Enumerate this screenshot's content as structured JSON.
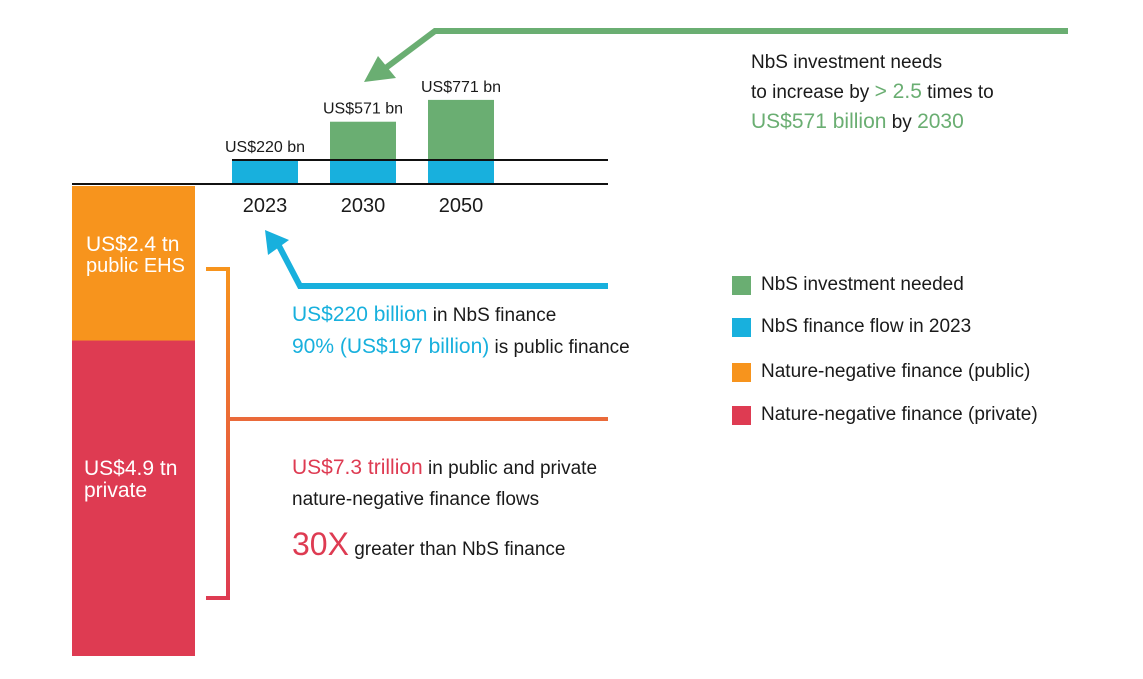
{
  "chart_data": {
    "type": "bar",
    "unit_label": "US$ billion",
    "colors": {
      "needed": "#6aae72",
      "flow": "#18b0dd",
      "public": "#f7941d",
      "private": "#de3b52",
      "bracket": "#ea6a3a"
    },
    "bars": [
      {
        "category": "2023",
        "flow": 220,
        "needed": 0,
        "label": "US$220 bn"
      },
      {
        "category": "2030",
        "flow": 220,
        "needed": 571,
        "label": "US$571 bn"
      },
      {
        "category": "2050",
        "flow": 220,
        "needed": 771,
        "label": "US$771 bn"
      }
    ],
    "stack": [
      {
        "series": "public",
        "value_tn": 2.4,
        "label_line1": "US$2.4 tn",
        "label_line2": "public EHS"
      },
      {
        "series": "private",
        "value_tn": 4.9,
        "label_line1": "US$4.9 tn",
        "label_line2": "private"
      }
    ],
    "legend": [
      {
        "series": "needed",
        "label": "NbS investment needed"
      },
      {
        "series": "flow",
        "label": "NbS finance flow in 2023"
      },
      {
        "series": "public",
        "label": "Nature-negative finance (public)"
      },
      {
        "series": "private",
        "label": "Nature-negative finance (private)"
      }
    ]
  },
  "annotations": {
    "needs": {
      "line1": "NbS investment needs",
      "line2_a": "to increase by ",
      "line2_b": "> 2.5",
      "line2_c": " times to",
      "line3_a": "US$571 billion",
      "line3_b": " by ",
      "line3_c": "2030"
    },
    "flow": {
      "line1_a": "US$220 billion",
      "line1_b": " in NbS finance",
      "line2_a": "90% (US$197 billion)",
      "line2_b": " is public finance"
    },
    "negative": {
      "line1_a": "US$7.3 trillion",
      "line1_b": " in public and private",
      "line2": "nature-negative finance flows",
      "line3_a": "30X",
      "line3_b": " greater than NbS finance"
    }
  }
}
